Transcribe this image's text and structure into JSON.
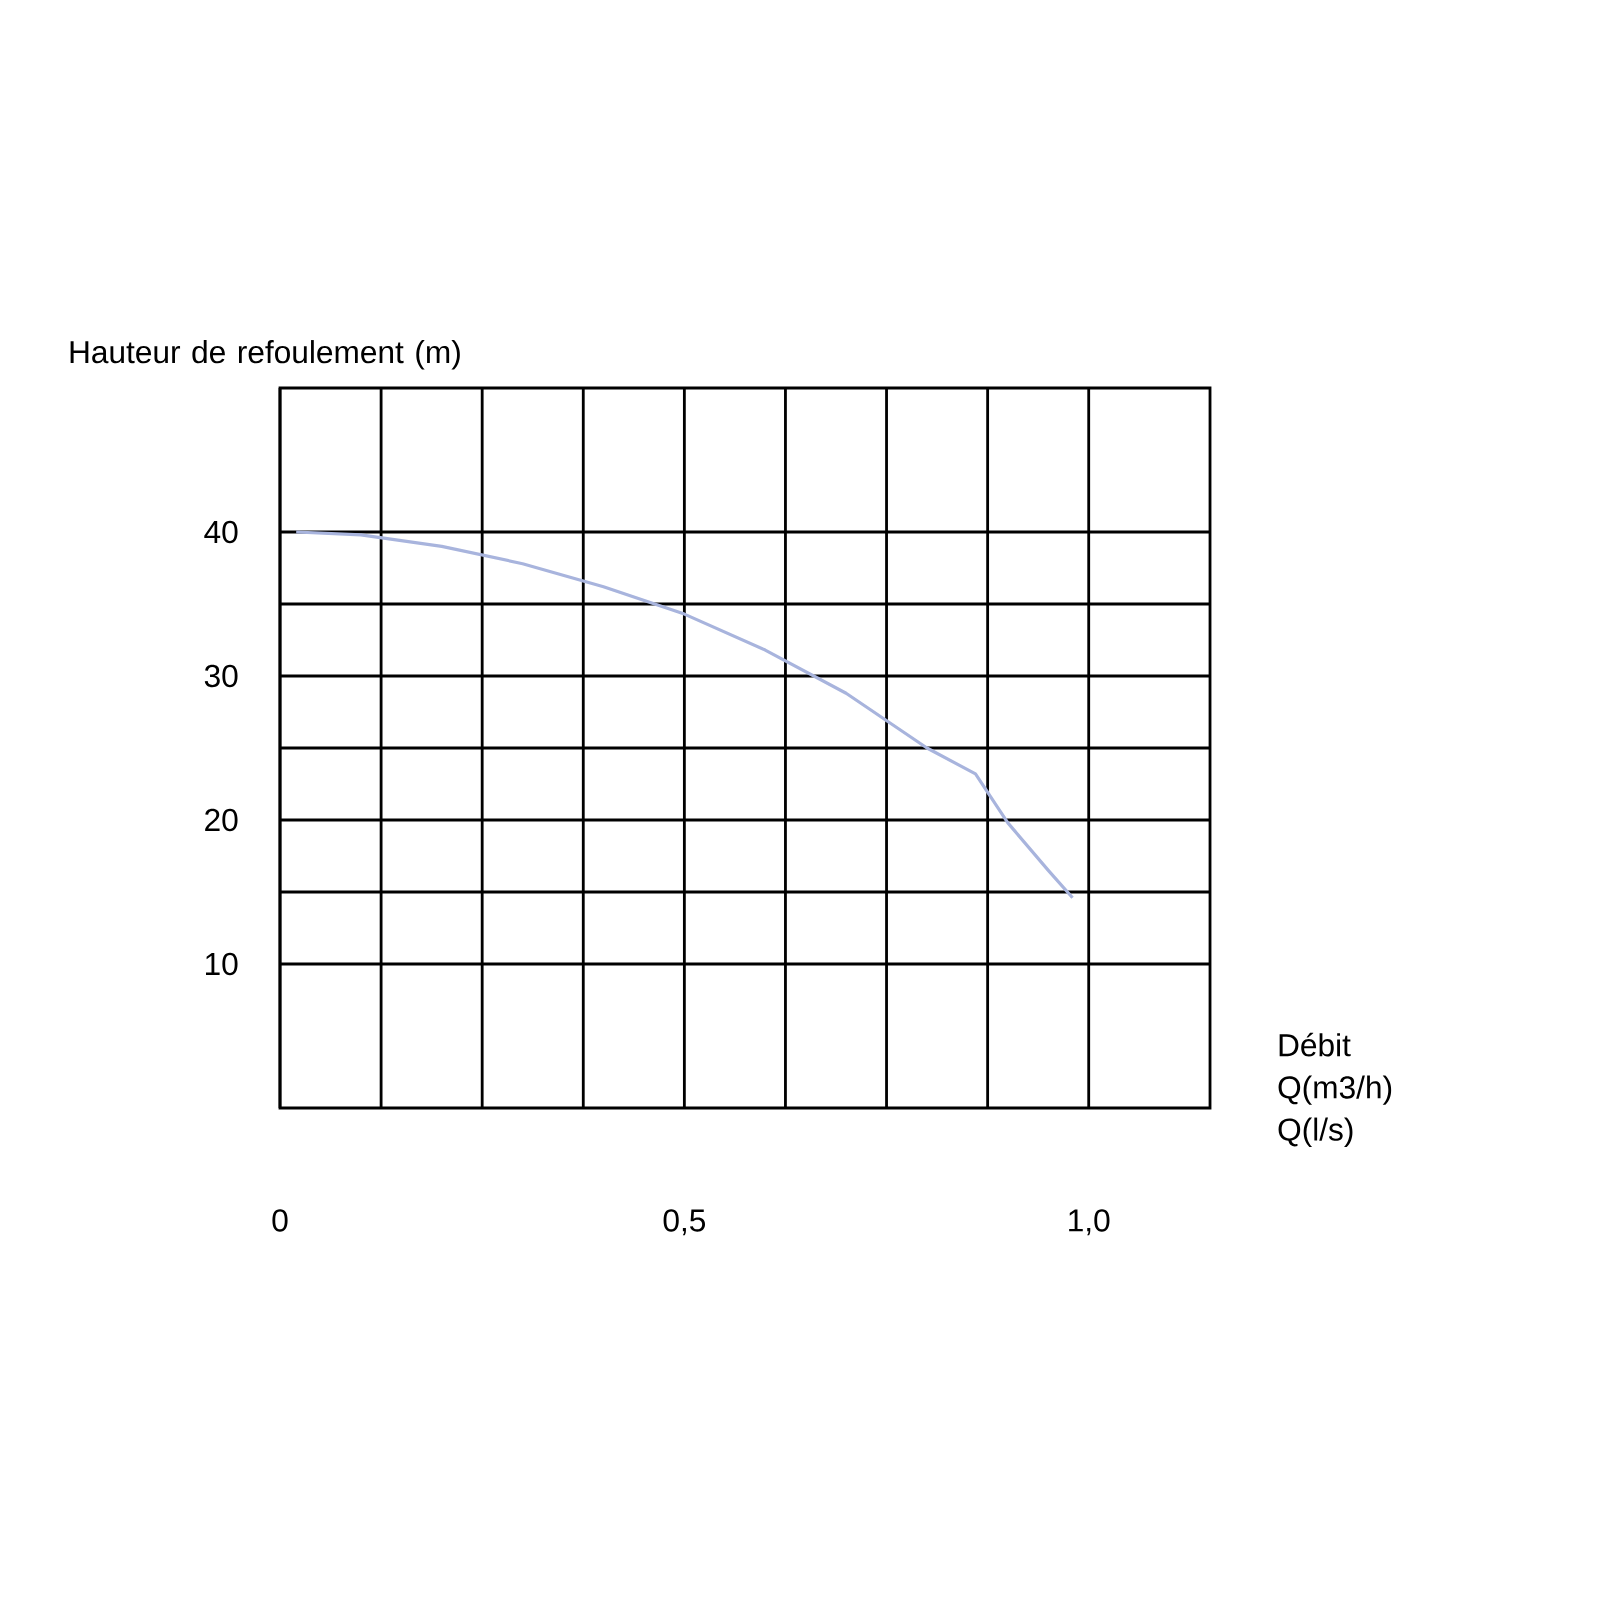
{
  "chart_data": {
    "type": "line",
    "xlabel": "Débit Q(m3/h) Q(l/s)",
    "ylabel": "Hauteur de refoulement (m)",
    "xlim": [
      0,
      1.15
    ],
    "xticks": [
      0,
      {
        "value": 0.5,
        "label": "0,5"
      },
      {
        "value": 1.0,
        "label": "1,0"
      }
    ],
    "ylim": [
      0,
      50
    ],
    "yticks": [
      10,
      20,
      30,
      40
    ],
    "grid": true,
    "marker": "none",
    "line_style": "solid",
    "series": [
      {
        "color": "#a8b4dd",
        "x": [
          0.02,
          0.1,
          0.2,
          0.3,
          0.4,
          0.5,
          0.6,
          0.7,
          0.8,
          0.86,
          0.9,
          0.95,
          0.98
        ],
        "values": [
          40,
          39.8,
          39,
          37.8,
          36.2,
          34.3,
          31.8,
          28.8,
          25,
          23.2,
          19.8,
          16.5,
          14.6
        ]
      }
    ]
  }
}
